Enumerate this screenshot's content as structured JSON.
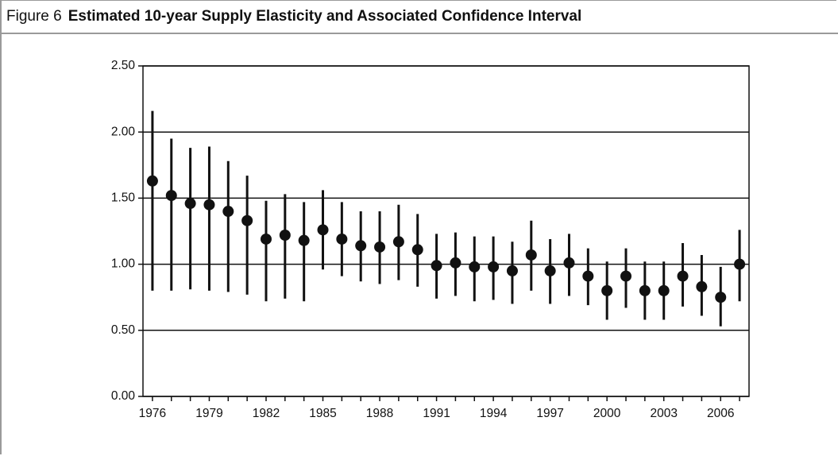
{
  "figure_label": "Figure 6",
  "chart_data": {
    "type": "errorbar",
    "title": "Estimated 10-year Supply Elasticity and Associated Confidence Interval",
    "categories": [
      "1976",
      null,
      null,
      "1979",
      null,
      null,
      "1982",
      null,
      null,
      "1985",
      null,
      null,
      "1988",
      null,
      null,
      "1991",
      null,
      null,
      "1994",
      null,
      null,
      "1997",
      null,
      null,
      "2000",
      null,
      null,
      "2003",
      null,
      null,
      "2006",
      null
    ],
    "series": [
      {
        "color": "#111111",
        "values": [
          1.63,
          1.52,
          1.46,
          1.45,
          1.4,
          1.33,
          1.19,
          1.22,
          1.18,
          1.26,
          1.19,
          1.14,
          1.13,
          1.17,
          1.11,
          0.99,
          1.01,
          0.98,
          0.98,
          0.95,
          1.07,
          0.95,
          1.01,
          0.91,
          0.8,
          0.91,
          0.8,
          0.8,
          0.91,
          0.83,
          0.75,
          1.0
        ],
        "lower": [
          0.8,
          0.8,
          0.81,
          0.8,
          0.79,
          0.77,
          0.72,
          0.74,
          0.72,
          0.96,
          0.91,
          0.87,
          0.85,
          0.88,
          0.83,
          0.74,
          0.76,
          0.72,
          0.73,
          0.7,
          0.8,
          0.7,
          0.76,
          0.69,
          0.58,
          0.67,
          0.58,
          0.58,
          0.68,
          0.61,
          0.53,
          0.72
        ],
        "upper": [
          2.16,
          1.95,
          1.88,
          1.89,
          1.78,
          1.67,
          1.48,
          1.53,
          1.47,
          1.56,
          1.47,
          1.4,
          1.4,
          1.45,
          1.38,
          1.23,
          1.24,
          1.21,
          1.21,
          1.17,
          1.33,
          1.19,
          1.23,
          1.12,
          1.02,
          1.12,
          1.02,
          1.02,
          1.16,
          1.07,
          0.98,
          1.26
        ]
      }
    ],
    "ylim": [
      0,
      2.5
    ],
    "yticks": [
      {
        "value": 0,
        "label": "0.00"
      },
      {
        "value": 0.5,
        "label": "0.50"
      },
      {
        "value": 1,
        "label": "1.00"
      },
      {
        "value": 1.5,
        "label": "1.50"
      },
      {
        "value": 2,
        "label": "2.00"
      },
      {
        "value": 2.5,
        "label": "2.50"
      }
    ],
    "grid": true
  }
}
